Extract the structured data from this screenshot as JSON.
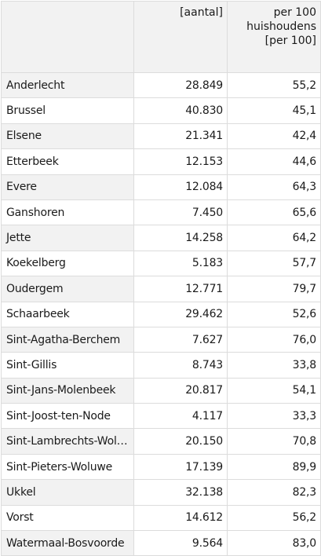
{
  "table": {
    "headers": {
      "name": "",
      "aantal": "[aantal]",
      "per100": [
        "per 100",
        "huishoudens",
        "[per 100]"
      ]
    },
    "rows": [
      {
        "name": "Anderlecht",
        "aantal": "28.849",
        "per100": "55,2"
      },
      {
        "name": "Brussel",
        "aantal": "40.830",
        "per100": "45,1"
      },
      {
        "name": "Elsene",
        "aantal": "21.341",
        "per100": "42,4"
      },
      {
        "name": "Etterbeek",
        "aantal": "12.153",
        "per100": "44,6"
      },
      {
        "name": "Evere",
        "aantal": "12.084",
        "per100": "64,3"
      },
      {
        "name": "Ganshoren",
        "aantal": "7.450",
        "per100": "65,6"
      },
      {
        "name": "Jette",
        "aantal": "14.258",
        "per100": "64,2"
      },
      {
        "name": "Koekelberg",
        "aantal": "5.183",
        "per100": "57,7"
      },
      {
        "name": "Oudergem",
        "aantal": "12.771",
        "per100": "79,7"
      },
      {
        "name": "Schaarbeek",
        "aantal": "29.462",
        "per100": "52,6"
      },
      {
        "name": "Sint-Agatha-Berchem",
        "aantal": "7.627",
        "per100": "76,0"
      },
      {
        "name": "Sint-Gillis",
        "aantal": "8.743",
        "per100": "33,8"
      },
      {
        "name": "Sint-Jans-Molenbeek",
        "aantal": "20.817",
        "per100": "54,1"
      },
      {
        "name": "Sint-Joost-ten-Node",
        "aantal": "4.117",
        "per100": "33,3"
      },
      {
        "name": "Sint-Lambrechts-Wolu...",
        "aantal": "20.150",
        "per100": "70,8"
      },
      {
        "name": "Sint-Pieters-Woluwe",
        "aantal": "17.139",
        "per100": "89,9"
      },
      {
        "name": "Ukkel",
        "aantal": "32.138",
        "per100": "82,3"
      },
      {
        "name": "Vorst",
        "aantal": "14.612",
        "per100": "56,2"
      },
      {
        "name": "Watermaal-Bosvoorde",
        "aantal": "9.564",
        "per100": "83,0"
      }
    ]
  }
}
